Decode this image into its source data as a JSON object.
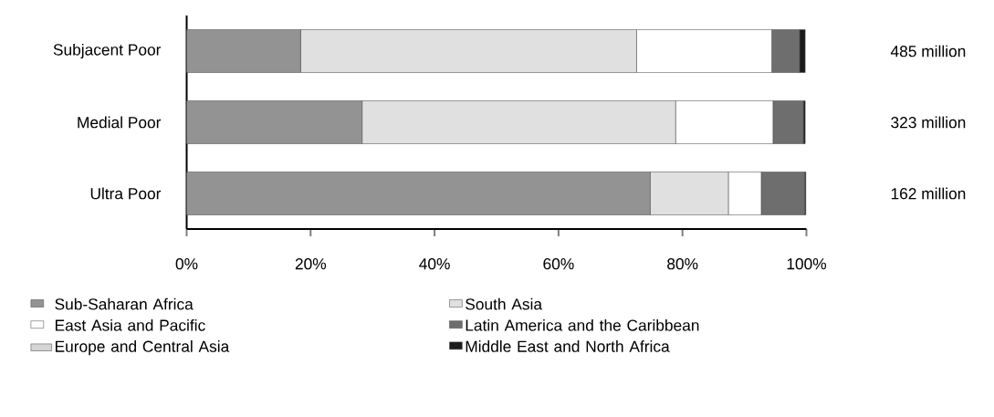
{
  "chart_data": {
    "type": "bar",
    "orientation": "horizontal",
    "stacked": true,
    "categories": [
      "Subjacent Poor",
      "Medial Poor",
      "Ultra Poor"
    ],
    "series": [
      {
        "name": "Sub-Saharan Africa",
        "color": "#939393",
        "values": [
          18.4,
          28.3,
          74.8
        ]
      },
      {
        "name": "South Asia",
        "color": "#e0e0e0",
        "values": [
          54.2,
          50.6,
          12.6
        ]
      },
      {
        "name": "East Asia and Pacific",
        "color": "#ffffff",
        "values": [
          21.8,
          15.7,
          5.3
        ]
      },
      {
        "name": "Latin America and the Caribbean",
        "color": "#6e6e6e",
        "values": [
          4.5,
          4.9,
          7.0
        ]
      },
      {
        "name": "Europe and Central Asia",
        "color": "#d4d4d4",
        "values": [
          null,
          null,
          null
        ]
      },
      {
        "name": "Middle East and North Africa",
        "color": "#1a1a1a",
        "values": [
          0.9,
          0.3,
          0.2
        ]
      }
    ],
    "xlim": [
      0,
      100
    ],
    "xticks": [
      {
        "value": 0,
        "label": "0%"
      },
      {
        "value": 20,
        "label": "20%"
      },
      {
        "value": 40,
        "label": "40%"
      },
      {
        "value": 60,
        "label": "60%"
      },
      {
        "value": 80,
        "label": "80%"
      },
      {
        "value": 100,
        "label": "100%"
      }
    ],
    "annotations": [
      "485 million",
      "323 million",
      "162 million"
    ],
    "legend": "bottom",
    "grid": false
  }
}
